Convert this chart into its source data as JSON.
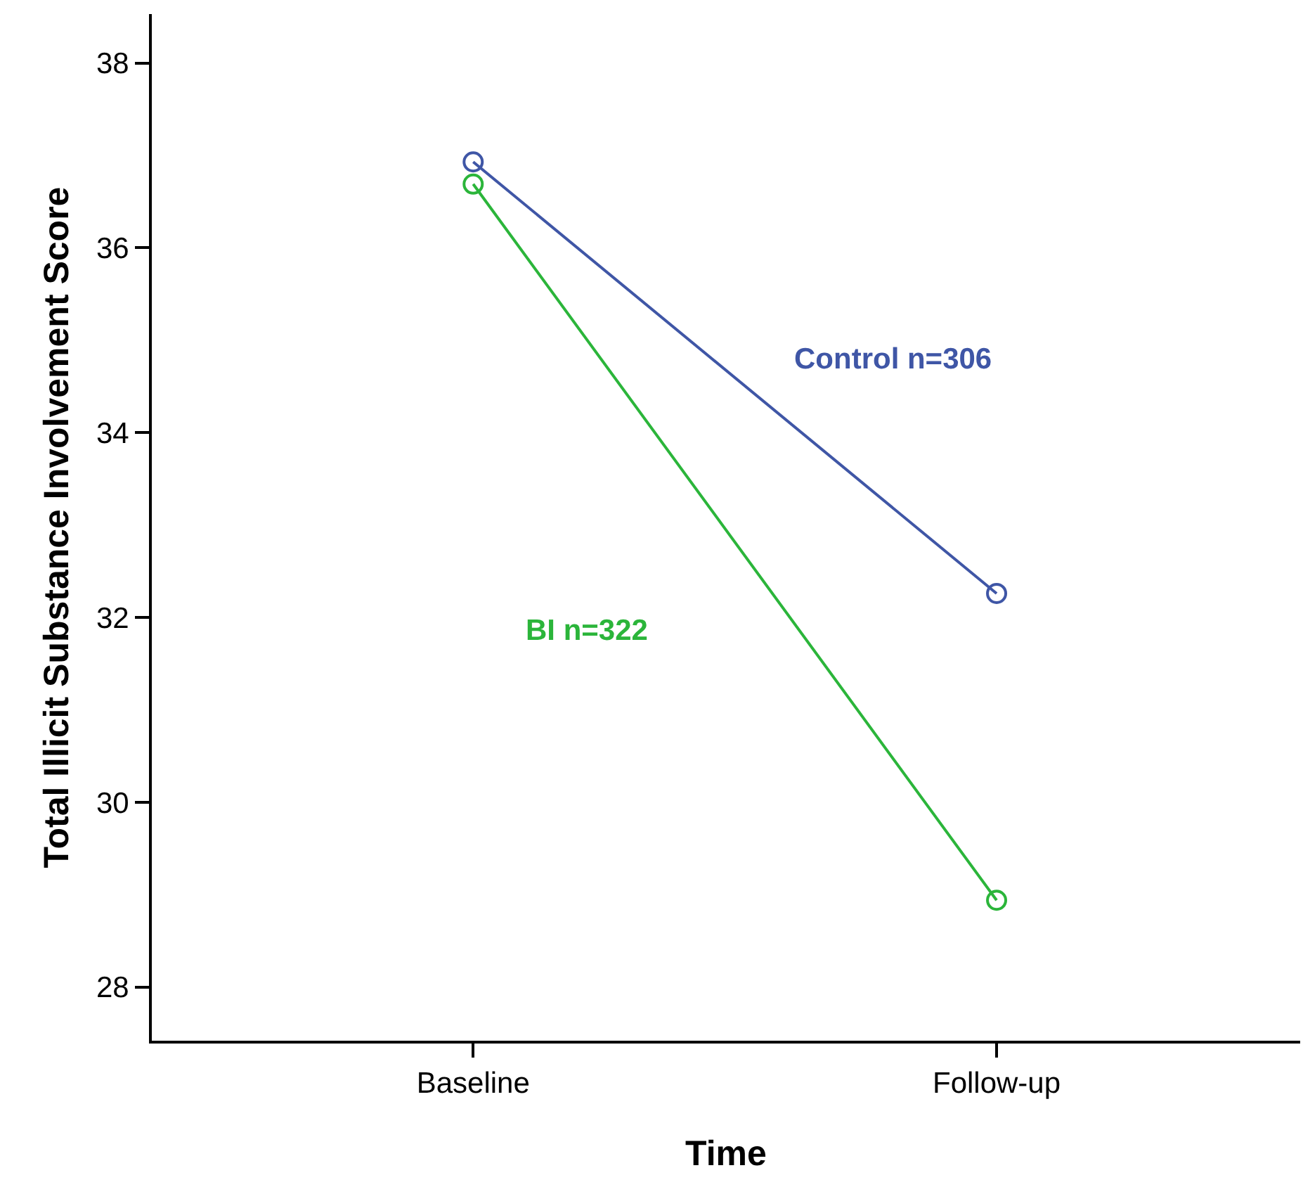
{
  "chart_data": {
    "type": "line",
    "xlabel": "Time",
    "ylabel": "Total Illicit Substance Involvement Score",
    "categories": [
      "Baseline",
      "Follow-up"
    ],
    "series": [
      {
        "name": "Control n=306",
        "color": "#3f56a6",
        "values": [
          36.93,
          32.26
        ]
      },
      {
        "name": "BI n=322",
        "color": "#2bb53a",
        "values": [
          36.69,
          28.94
        ]
      }
    ],
    "ylim": [
      27.42,
      38.53
    ],
    "yticks": [
      28,
      30,
      32,
      34,
      36,
      38
    ],
    "legend": false,
    "marker": "circle",
    "line_style": "solid"
  }
}
